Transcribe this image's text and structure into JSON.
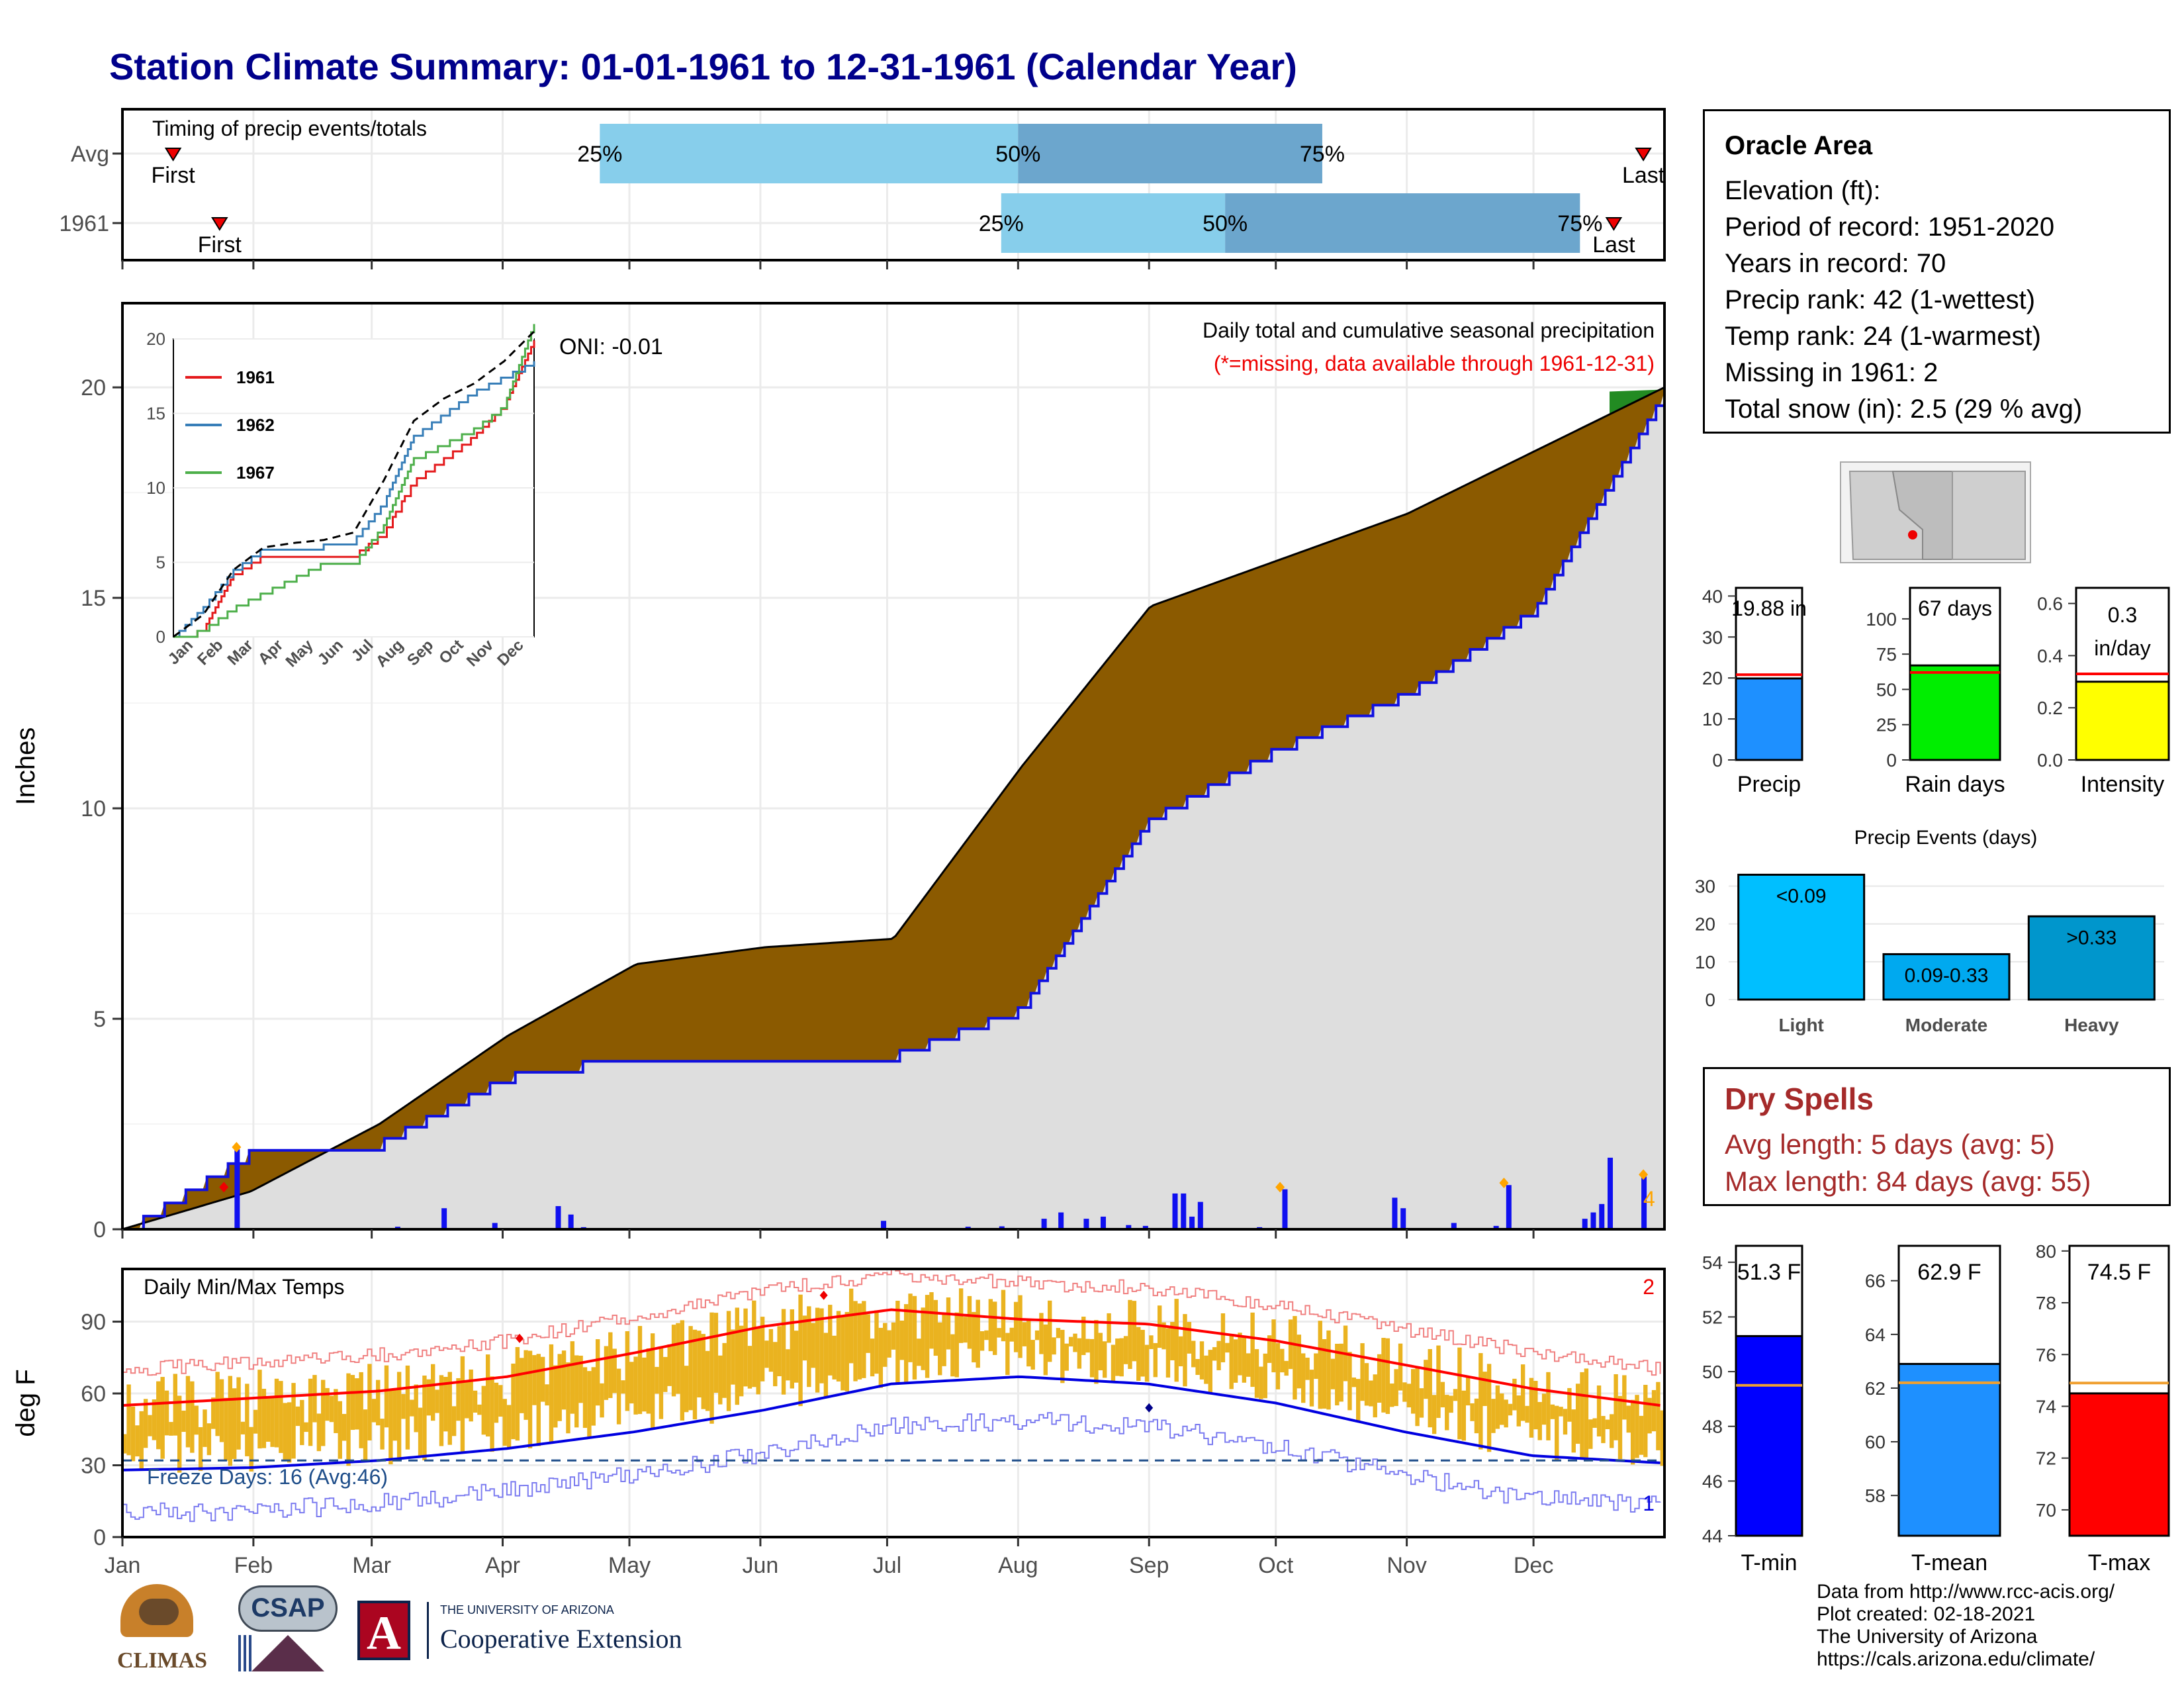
{
  "title": "Station Climate Summary: 01-01-1961 to 12-31-1961 (Calendar Year)",
  "timing_panel": {
    "title": "Timing of precip events/totals",
    "rows": [
      {
        "label": "Avg",
        "first_label": "First",
        "last_label": "Last",
        "p25": "25%",
        "p50": "50%",
        "p75": "75%",
        "first_day": 12,
        "last_day": 360,
        "p25_day": 113,
        "p50_day": 212,
        "p75_day": 284
      },
      {
        "label": "1961",
        "first_label": "First",
        "last_label": "Last",
        "p25": "25%",
        "p50": "50%",
        "p75": "75%",
        "first_day": 23,
        "last_day": 353,
        "p25_day": 208,
        "p50_day": 261,
        "p75_day": 345
      }
    ]
  },
  "precip_panel": {
    "ylabel": "Inches",
    "yticks": [
      "0",
      "5",
      "10",
      "15",
      "20"
    ],
    "oni": "ONI: -0.01",
    "subtitle": "Daily total and cumulative seasonal precipitation",
    "missing_note": "(*=missing, data available through 1961-12-31)",
    "missing_count": "4"
  },
  "inset": {
    "yticks": [
      "0",
      "5",
      "10",
      "15",
      "20"
    ],
    "months": [
      "Jan",
      "Feb",
      "Mar",
      "Apr",
      "May",
      "Jun",
      "Jul",
      "Aug",
      "Sep",
      "Oct",
      "Nov",
      "Dec"
    ],
    "legend": [
      "1961",
      "1962",
      "1967"
    ],
    "colors": [
      "#e41a1c",
      "#377eb8",
      "#4daf4a"
    ]
  },
  "temp_panel": {
    "ylabel": "deg F",
    "title": "Daily Min/Max Temps",
    "yticks": [
      "0",
      "30",
      "60",
      "90"
    ],
    "missing_count": "2",
    "min_missing_count": "1",
    "freeze_label": "Freeze Days: 16 (Avg:46)"
  },
  "x_months": [
    "Jan",
    "Feb",
    "Mar",
    "Apr",
    "May",
    "Jun",
    "Jul",
    "Aug",
    "Sep",
    "Oct",
    "Nov",
    "Dec"
  ],
  "info": {
    "name": "Oracle Area",
    "elevation": "Elevation (ft):",
    "period": "Period of record: 1951-2020",
    "years": "Years in record: 70",
    "precip_rank": "Precip rank: 42 (1-wettest)",
    "temp_rank": "Temp rank: 24 (1-warmest)",
    "missing": "Missing in 1961: 2",
    "snow": "Total snow (in): 2.5 (29 % avg)"
  },
  "mini_bars": [
    {
      "label": "Precip",
      "value_text": "19.88 in",
      "value": 19.88,
      "avg": 20.8,
      "ymax": 42,
      "ticks": [
        "0",
        "10",
        "20",
        "30",
        "40"
      ],
      "tickvals": [
        0,
        10,
        20,
        30,
        40
      ],
      "color": "#1e90ff"
    },
    {
      "label": "Rain days",
      "value_text": "67 days",
      "value": 67,
      "avg": 62,
      "ymax": 122,
      "ticks": [
        "0",
        "25",
        "50",
        "75",
        "100"
      ],
      "tickvals": [
        0,
        25,
        50,
        75,
        100
      ],
      "color": "#00ee00"
    },
    {
      "label": "Intensity",
      "value_text": "0.3 in/day",
      "value_line1": "0.3",
      "value_line2": "in/day",
      "value": 0.3,
      "avg": 0.33,
      "ymax": 0.66,
      "ticks": [
        "0.0",
        "0.2",
        "0.4",
        "0.6"
      ],
      "tickvals": [
        0,
        0.2,
        0.4,
        0.6
      ],
      "color": "#ffff00"
    }
  ],
  "precip_events": {
    "title": "Precip Events (days)",
    "categories": [
      "Light",
      "Moderate",
      "Heavy"
    ],
    "labels": [
      "<0.09",
      "0.09-0.33",
      ">0.33"
    ],
    "values": [
      33,
      12,
      22
    ],
    "yticks": [
      "0",
      "10",
      "20",
      "30"
    ],
    "colors": [
      "#00bfff",
      "#00a9ef",
      "#0096cc"
    ]
  },
  "dry_spells": {
    "title": "Dry Spells",
    "avg": "Avg length: 5 days (avg: 5)",
    "max": "Max length: 84 days (avg: 55)"
  },
  "temp_bars": [
    {
      "label": "T-min",
      "value_text": "51.3 F",
      "value": 51.3,
      "avg": 49.5,
      "ymin": 44,
      "ymax": 54.6,
      "ticks": [
        "44",
        "46",
        "48",
        "50",
        "52",
        "54"
      ],
      "tickvals": [
        44,
        46,
        48,
        50,
        52,
        54
      ],
      "color": "#0000ff"
    },
    {
      "label": "T-mean",
      "value_text": "62.9 F",
      "value": 62.9,
      "avg": 62.2,
      "ymin": 56.5,
      "ymax": 67.3,
      "ticks": [
        "58",
        "60",
        "62",
        "64",
        "66"
      ],
      "tickvals": [
        58,
        60,
        62,
        64,
        66
      ],
      "color": "#1e90ff"
    },
    {
      "label": "T-max",
      "value_text": "74.5 F",
      "value": 74.5,
      "avg": 74.9,
      "ymin": 69,
      "ymax": 80.2,
      "ticks": [
        "70",
        "72",
        "74",
        "76",
        "78",
        "80"
      ],
      "tickvals": [
        70,
        72,
        74,
        76,
        78,
        80
      ],
      "color": "#ff0000"
    }
  ],
  "credits": {
    "line1": "Data from http://www.rcc-acis.org/",
    "line2": "Plot created: 02-18-2021",
    "line3": "The University of Arizona",
    "line4": "https://cals.arizona.edu/climate/"
  },
  "logos": {
    "climas": "CLIMAS",
    "csap": "CSAP",
    "ua_small": "THE UNIVERSITY OF ARIZONA",
    "ua_big": "Cooperative Extension",
    "ua_letter": "A"
  },
  "chart_data": [
    {
      "type": "area",
      "title": "Daily total and cumulative seasonal precipitation",
      "xlabel": "",
      "ylabel": "Inches",
      "ylim": [
        0,
        22
      ],
      "x": [
        "Jan",
        "Feb",
        "Mar",
        "Apr",
        "May",
        "Jun",
        "Jul",
        "Aug",
        "Sep",
        "Oct",
        "Nov",
        "Dec",
        "Dec 31"
      ],
      "series": [
        {
          "values": [
            0.0,
            0.9,
            2.5,
            4.6,
            6.3,
            6.7,
            6.9,
            11.0,
            14.8,
            15.9,
            17.0,
            18.5,
            20.0
          ]
        },
        {
          "values": [
            0.0,
            1.9,
            2.1,
            3.7,
            4.2,
            4.2,
            4.2,
            5.3,
            9.8,
            11.5,
            12.8,
            14.8,
            19.9
          ]
        }
      ]
    },
    {
      "type": "line",
      "title": "",
      "ylim": [
        0,
        20
      ],
      "x": [
        "Jan",
        "Feb",
        "Mar",
        "Apr",
        "May",
        "Jun",
        "Jul",
        "Aug",
        "Sep",
        "Oct",
        "Nov",
        "Dec",
        "Dec 31"
      ],
      "series": [
        {
          "name": "1961",
          "values": [
            0,
            0.5,
            4.2,
            5.5,
            5.5,
            5.5,
            5.5,
            7.0,
            10.5,
            12.0,
            13.5,
            15.5,
            19.9
          ]
        },
        {
          "name": "1962",
          "values": [
            0,
            2.0,
            4.5,
            6.0,
            6.0,
            6.2,
            6.5,
            9.0,
            13.5,
            15.0,
            16.5,
            17.5,
            18.5
          ]
        },
        {
          "name": "1967",
          "values": [
            0,
            0.5,
            2.0,
            3.0,
            4.0,
            5.0,
            5.0,
            7.5,
            12.0,
            13.0,
            14.0,
            15.5,
            21.0
          ]
        },
        {
          "values": [
            0,
            1.5,
            4.5,
            6.0,
            6.3,
            6.5,
            7.0,
            10.5,
            14.5,
            16.0,
            17.0,
            18.5,
            20.5
          ]
        }
      ]
    },
    {
      "type": "line",
      "title": "Daily Min/Max Temps",
      "ylabel": "deg F",
      "ylim": [
        0,
        112
      ],
      "x": [
        "Jan",
        "Feb",
        "Mar",
        "Apr",
        "May",
        "Jun",
        "Jul",
        "Aug",
        "Sep",
        "Oct",
        "Nov",
        "Dec",
        "Dec 31"
      ],
      "series": [
        {
          "values": [
            55,
            58,
            61,
            67,
            77,
            88,
            95,
            91,
            89,
            82,
            72,
            62,
            55
          ]
        },
        {
          "values": [
            28,
            29,
            32,
            37,
            44,
            53,
            64,
            67,
            64,
            56,
            44,
            34,
            31
          ]
        }
      ]
    }
  ]
}
